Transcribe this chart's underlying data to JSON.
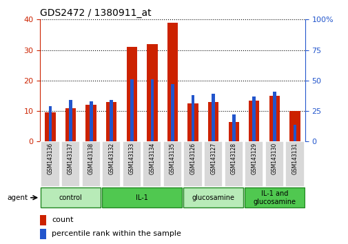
{
  "title": "GDS2472 / 1380911_at",
  "samples": [
    "GSM143136",
    "GSM143137",
    "GSM143138",
    "GSM143132",
    "GSM143133",
    "GSM143134",
    "GSM143135",
    "GSM143126",
    "GSM143127",
    "GSM143128",
    "GSM143129",
    "GSM143130",
    "GSM143131"
  ],
  "counts": [
    9.5,
    11,
    12,
    13,
    31,
    32,
    39,
    12.5,
    13,
    6.5,
    13.5,
    15,
    10
  ],
  "percentiles": [
    29,
    34,
    33,
    34,
    51,
    51,
    47,
    38,
    39,
    22,
    37,
    41,
    14
  ],
  "groups": [
    {
      "label": "control",
      "start": 0,
      "end": 3,
      "color": "#b8ebb8"
    },
    {
      "label": "IL-1",
      "start": 3,
      "end": 7,
      "color": "#50c850"
    },
    {
      "label": "glucosamine",
      "start": 7,
      "end": 10,
      "color": "#b8ebb8"
    },
    {
      "label": "IL-1 and\nglucosamine",
      "start": 10,
      "end": 13,
      "color": "#50c850"
    }
  ],
  "ylim_left": [
    0,
    40
  ],
  "ylim_right": [
    0,
    100
  ],
  "yticks_left": [
    0,
    10,
    20,
    30,
    40
  ],
  "yticks_right": [
    0,
    25,
    50,
    75,
    100
  ],
  "ytick_labels_right": [
    "0",
    "25",
    "50",
    "75",
    "100%"
  ],
  "bar_color": "#cc2200",
  "percentile_color": "#2255cc",
  "legend_count": "count",
  "legend_pct": "percentile rank within the sample",
  "agent_label": "agent",
  "group_border_color": "#228822",
  "sample_bg_color": "#d8d8d8"
}
